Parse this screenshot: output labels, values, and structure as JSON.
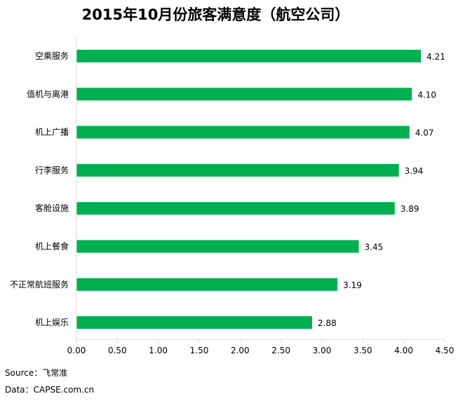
{
  "chart_data": {
    "type": "bar",
    "orientation": "horizontal",
    "title": "2015年10月份旅客满意度（航空公司）",
    "categories": [
      "空乘服务",
      "值机与离港",
      "机上广播",
      "行李服务",
      "客舱设施",
      "机上餐食",
      "不正常航班服务",
      "机上娱乐"
    ],
    "values": [
      4.21,
      4.1,
      4.07,
      3.94,
      3.89,
      3.45,
      3.19,
      2.88
    ],
    "value_labels": [
      "4.21",
      "4.10",
      "4.07",
      "3.94",
      "3.89",
      "3.45",
      "3.19",
      "2.88"
    ],
    "xlim": [
      0,
      4.5
    ],
    "xticks": [
      "0.00",
      "0.50",
      "1.00",
      "1.50",
      "2.00",
      "2.50",
      "3.00",
      "3.50",
      "4.00",
      "4.50"
    ],
    "grid": false,
    "legend": "none",
    "bar_color": "#00b050"
  },
  "footer": {
    "source": "Source：飞常准",
    "data": "Data：CAPSE.com.cn"
  }
}
